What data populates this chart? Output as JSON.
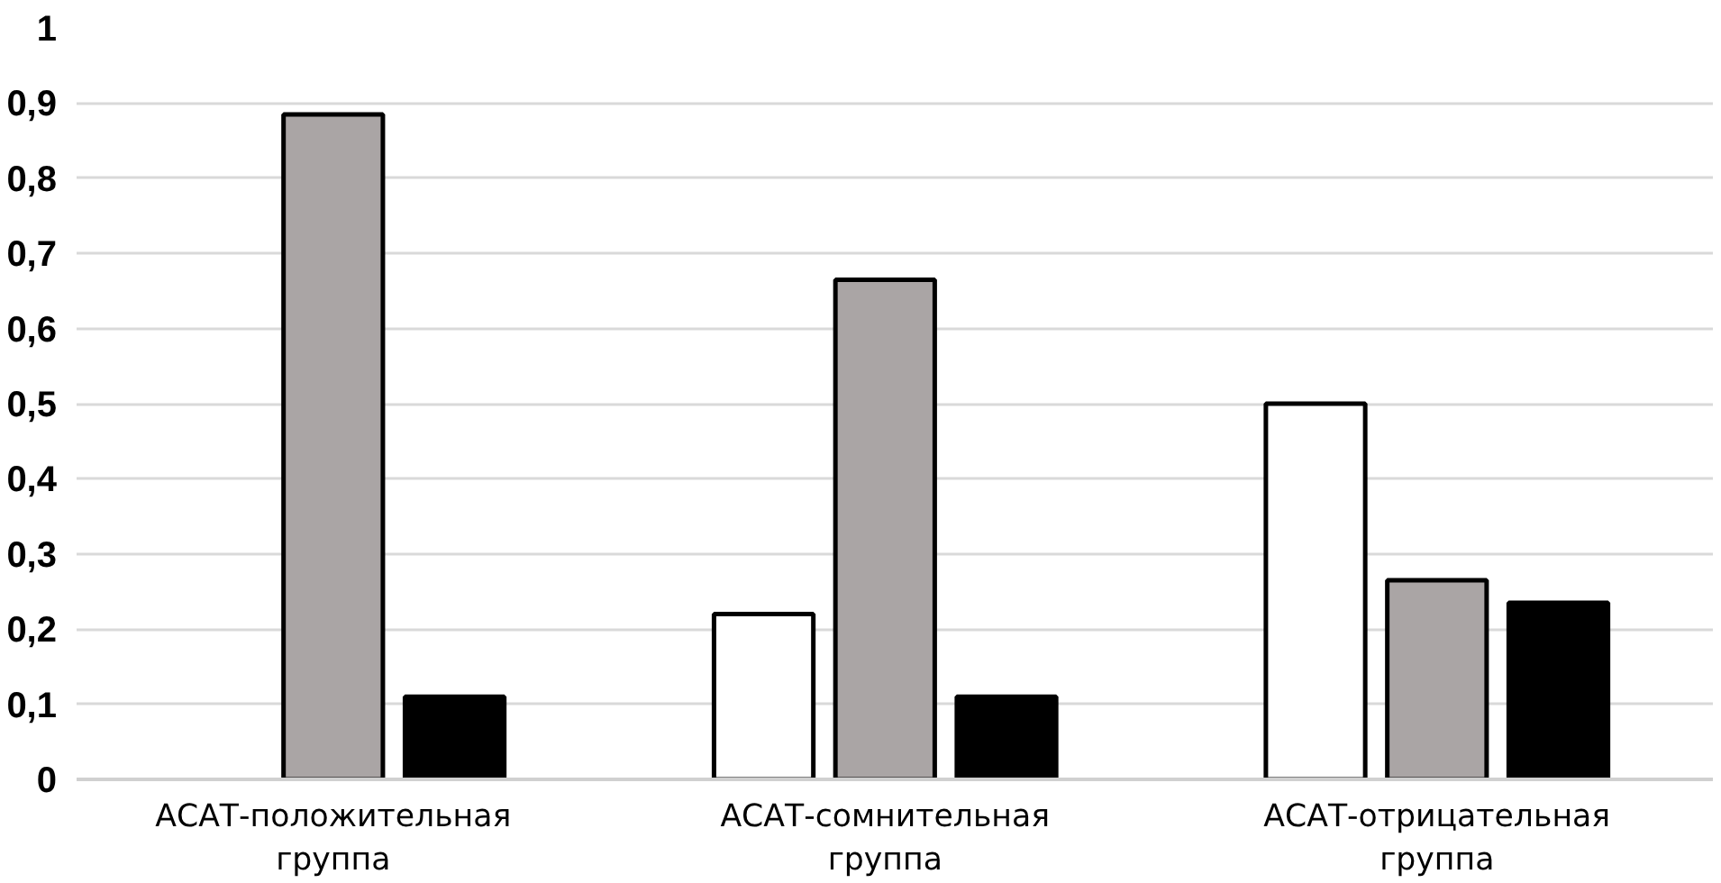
{
  "chart_data": {
    "type": "bar",
    "categories": [
      "АСАТ-положительная группа",
      "АСАТ-сомнительная группа",
      "АСАТ-отрицательная группа"
    ],
    "series": [
      {
        "color": "#ffffff",
        "values": [
          null,
          0.22,
          0.5
        ]
      },
      {
        "color": "#aaa5a5",
        "values": [
          0.885,
          0.665,
          0.265
        ]
      },
      {
        "color": "#000000",
        "values": [
          0.11,
          0.11,
          0.235
        ]
      }
    ],
    "ylim": [
      0,
      1
    ],
    "yticks": [
      0,
      {
        "value": 0.1,
        "label": "0,1"
      },
      {
        "value": 0.2,
        "label": "0,2"
      },
      {
        "value": 0.3,
        "label": "0,3"
      },
      {
        "value": 0.4,
        "label": "0,4"
      },
      {
        "value": 0.5,
        "label": "0,5"
      },
      {
        "value": 0.6,
        "label": "0,6"
      },
      {
        "value": 0.7,
        "label": "0,7"
      },
      {
        "value": 0.8,
        "label": "0,8"
      },
      {
        "value": 0.9,
        "label": "0,9"
      },
      1
    ],
    "grid": "y"
  }
}
